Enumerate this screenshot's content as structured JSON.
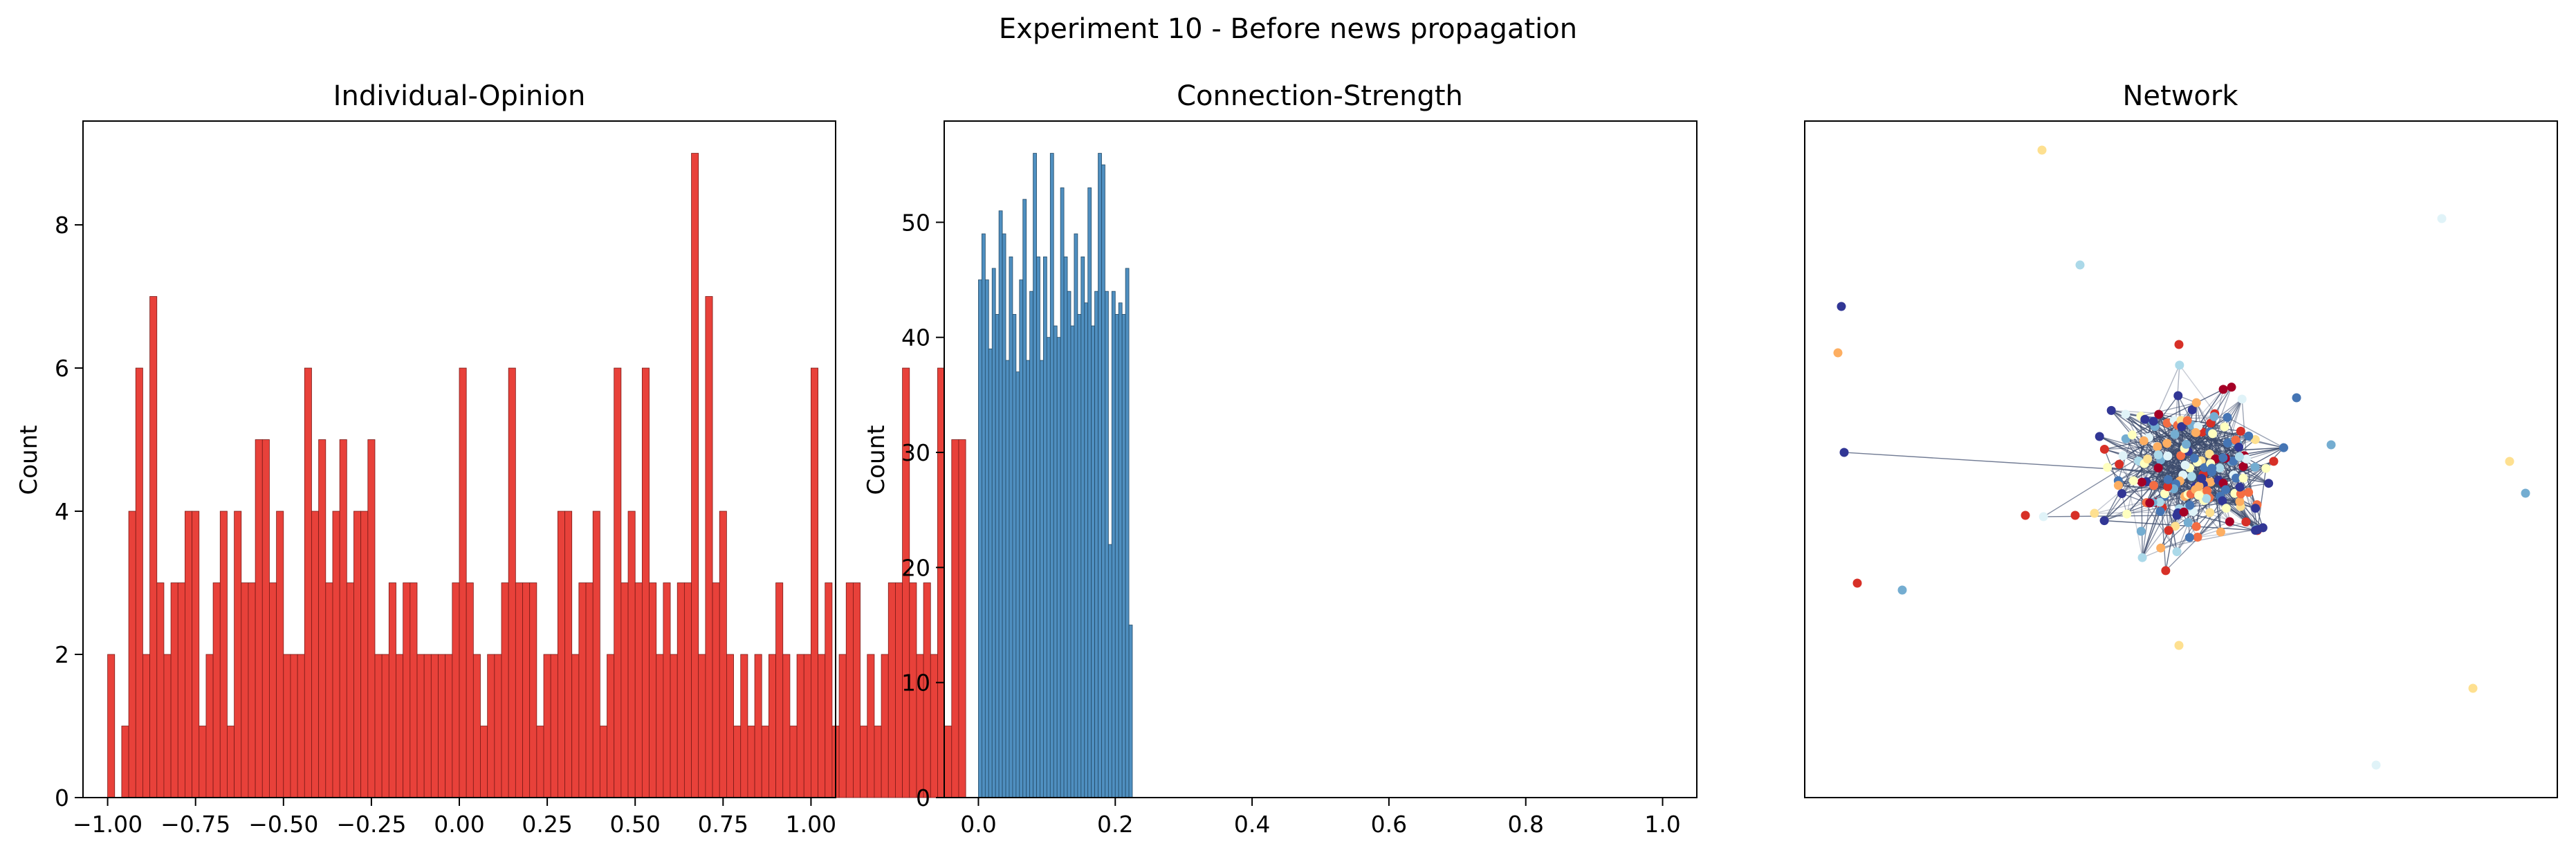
{
  "suptitle": "Experiment 10 - Before news propagation",
  "chart_data": [
    {
      "type": "bar",
      "title": "Individual-Opinion",
      "xlabel": "",
      "ylabel": "Count",
      "xlim": [
        -1.07,
        1.07
      ],
      "ylim": [
        0,
        9.45
      ],
      "xticks": [
        -1.0,
        -0.75,
        -0.5,
        -0.25,
        0.0,
        0.25,
        0.5,
        0.75,
        1.0
      ],
      "xtick_labels": [
        "−1.00",
        "−0.75",
        "−0.50",
        "−0.25",
        "0.00",
        "0.25",
        "0.50",
        "0.75",
        "1.00"
      ],
      "yticks": [
        0,
        2,
        4,
        6,
        8
      ],
      "bin_start": -1.0,
      "bin_width": 0.02,
      "values": [
        2,
        0,
        1,
        4,
        6,
        2,
        7,
        3,
        2,
        3,
        3,
        4,
        4,
        1,
        2,
        3,
        4,
        1,
        4,
        3,
        3,
        5,
        5,
        3,
        4,
        2,
        2,
        2,
        6,
        4,
        5,
        3,
        4,
        5,
        3,
        4,
        4,
        5,
        2,
        2,
        3,
        2,
        3,
        3,
        2,
        2,
        2,
        2,
        2,
        3,
        6,
        3,
        2,
        1,
        2,
        2,
        3,
        6,
        3,
        3,
        3,
        1,
        2,
        2,
        4,
        4,
        2,
        3,
        3,
        4,
        1,
        2,
        6,
        3,
        4,
        3,
        6,
        3,
        2,
        3,
        2,
        3,
        3,
        9,
        2,
        7,
        3,
        4,
        2,
        1,
        2,
        1,
        2,
        1,
        2,
        3,
        2,
        1,
        2,
        2,
        6,
        2,
        3,
        1,
        2,
        3,
        3,
        1,
        2,
        1,
        2,
        3,
        3,
        6,
        3,
        2,
        3,
        2,
        6,
        1,
        5,
        5
      ],
      "bar_color": "#e8413a",
      "edge_color": "#7a1a17",
      "grid": false
    },
    {
      "type": "bar",
      "title": "Connection-Strength",
      "xlabel": "",
      "ylabel": "Count",
      "xlim": [
        -0.05,
        1.05
      ],
      "ylim": [
        0,
        58.8
      ],
      "xticks": [
        0.0,
        0.2,
        0.4,
        0.6,
        0.8,
        1.0
      ],
      "xtick_labels": [
        "0.0",
        "0.2",
        "0.4",
        "0.6",
        "0.8",
        "1.0"
      ],
      "yticks": [
        0,
        10,
        20,
        30,
        40,
        50
      ],
      "bin_start": 0.0,
      "bin_width": 0.005,
      "values": [
        45,
        49,
        45,
        39,
        46,
        42,
        51,
        49,
        38,
        47,
        42,
        37,
        45,
        52,
        38,
        44,
        56,
        47,
        38,
        47,
        40,
        56,
        41,
        40,
        53,
        47,
        44,
        41,
        49,
        42,
        47,
        43,
        53,
        41,
        44,
        56,
        55,
        44,
        22,
        44,
        42,
        43,
        42,
        46,
        15
      ],
      "bar_color": "#4f8fc0",
      "edge_color": "#244a66",
      "grid": false
    },
    {
      "type": "scatter",
      "title": "Network",
      "xlabel": "",
      "ylabel": "",
      "axes_visible": false,
      "node_palette": [
        "#a50026",
        "#d73027",
        "#f46d43",
        "#fdae61",
        "#fee090",
        "#ffffbf",
        "#e0f3f8",
        "#abd9e9",
        "#74add1",
        "#4575b4",
        "#313695"
      ],
      "edge_color": "#3b4a6b"
    }
  ]
}
